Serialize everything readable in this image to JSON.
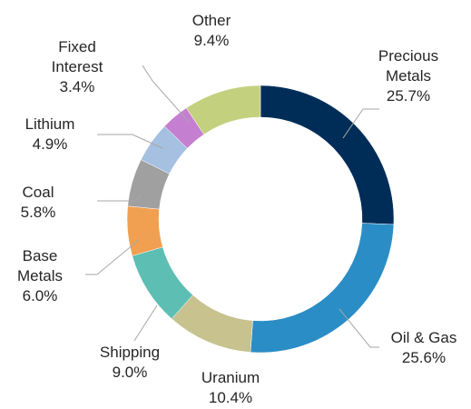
{
  "chart_data": {
    "type": "pie",
    "variant": "donut",
    "start_angle_deg": 0,
    "direction": "clockwise",
    "legend": "none",
    "slices": [
      {
        "name": "Precious Metals",
        "label_lines": [
          "Precious",
          "Metals"
        ],
        "value": 25.7,
        "value_label": "25.7%",
        "color": "#002d58"
      },
      {
        "name": "Oil & Gas",
        "label_lines": [
          "Oil & Gas"
        ],
        "value": 25.6,
        "value_label": "25.6%",
        "color": "#2a8dc6"
      },
      {
        "name": "Uranium",
        "label_lines": [
          "Uranium"
        ],
        "value": 10.4,
        "value_label": "10.4%",
        "color": "#c7c28e"
      },
      {
        "name": "Shipping",
        "label_lines": [
          "Shipping"
        ],
        "value": 9.0,
        "value_label": "9.0%",
        "color": "#5dbfb4"
      },
      {
        "name": "Base Metals",
        "label_lines": [
          "Base",
          "Metals"
        ],
        "value": 6.0,
        "value_label": "6.0%",
        "color": "#f0a050"
      },
      {
        "name": "Coal",
        "label_lines": [
          "Coal"
        ],
        "value": 5.8,
        "value_label": "5.8%",
        "color": "#a0a0a0"
      },
      {
        "name": "Lithium",
        "label_lines": [
          "Lithium"
        ],
        "value": 4.9,
        "value_label": "4.9%",
        "color": "#a5c0e0"
      },
      {
        "name": "Fixed Interest",
        "label_lines": [
          "Fixed",
          "Interest"
        ],
        "value": 3.4,
        "value_label": "3.4%",
        "color": "#c57fd0"
      },
      {
        "name": "Other",
        "label_lines": [
          "Other"
        ],
        "value": 9.4,
        "value_label": "9.4%",
        "color": "#c3d17e"
      }
    ]
  }
}
